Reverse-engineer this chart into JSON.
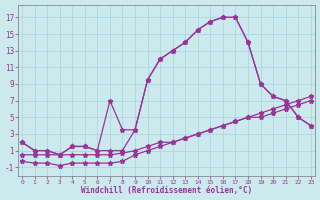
{
  "bg_color": "#cce9ee",
  "line_color": "#993399",
  "grid_color": "#aad8e0",
  "xlabel": "Windchill (Refroidissement éolien,°C)",
  "curve1_x": [
    0,
    1,
    2,
    3,
    4,
    5,
    6,
    7,
    8,
    9,
    10,
    11,
    12,
    13,
    14,
    15,
    16,
    17,
    18,
    19,
    20,
    21,
    22,
    23
  ],
  "curve1_y": [
    2.0,
    1.0,
    1.0,
    0.5,
    1.5,
    1.5,
    1.0,
    1.0,
    1.0,
    3.5,
    9.5,
    12.0,
    13.0,
    14.0,
    15.5,
    16.5,
    17.0,
    17.0,
    14.0,
    9.0,
    7.5,
    7.0,
    5.0,
    4.0
  ],
  "curve2_x": [
    0,
    1,
    2,
    3,
    4,
    5,
    6,
    7,
    8,
    9,
    10,
    11,
    12,
    13,
    14,
    15,
    16,
    17,
    18,
    19,
    20,
    21,
    22,
    23
  ],
  "curve2_y": [
    2.0,
    1.0,
    1.0,
    0.5,
    1.5,
    1.5,
    1.0,
    7.0,
    3.5,
    3.5,
    9.5,
    12.0,
    13.0,
    14.0,
    15.5,
    16.5,
    17.0,
    17.0,
    14.0,
    9.0,
    7.5,
    7.0,
    5.0,
    4.0
  ],
  "curve3_x": [
    0,
    1,
    2,
    3,
    4,
    5,
    6,
    7,
    8,
    9,
    10,
    11,
    12,
    13,
    14,
    15,
    16,
    17,
    18,
    19,
    20,
    21,
    22,
    23
  ],
  "curve3_y": [
    -0.3,
    -0.5,
    -0.5,
    -0.8,
    -0.5,
    -0.5,
    -0.5,
    -0.5,
    -0.3,
    0.5,
    1.0,
    1.5,
    2.0,
    2.5,
    3.0,
    3.5,
    4.0,
    4.5,
    5.0,
    5.0,
    5.5,
    6.0,
    6.5,
    7.0
  ],
  "curve4_x": [
    0,
    1,
    2,
    3,
    4,
    5,
    6,
    7,
    8,
    9,
    10,
    11,
    12,
    13,
    14,
    15,
    16,
    17,
    18,
    19,
    20,
    21,
    22,
    23
  ],
  "curve4_y": [
    0.5,
    0.5,
    0.5,
    0.5,
    0.5,
    0.5,
    0.5,
    0.5,
    0.7,
    1.0,
    1.5,
    2.0,
    2.0,
    2.5,
    3.0,
    3.5,
    4.0,
    4.5,
    5.0,
    5.5,
    6.0,
    6.5,
    7.0,
    7.5
  ],
  "ylim": [
    -2.0,
    18.5
  ],
  "xlim": [
    -0.3,
    23.3
  ],
  "yticks": [
    -1,
    1,
    3,
    5,
    7,
    9,
    11,
    13,
    15,
    17
  ],
  "xticks": [
    0,
    1,
    2,
    3,
    4,
    5,
    6,
    7,
    8,
    9,
    10,
    11,
    12,
    13,
    14,
    15,
    16,
    17,
    18,
    19,
    20,
    21,
    22,
    23
  ],
  "tick_fontsize_x": 4.5,
  "tick_fontsize_y": 5.5,
  "xlabel_fontsize": 5.5,
  "linewidth": 0.9,
  "markersize": 3.5
}
